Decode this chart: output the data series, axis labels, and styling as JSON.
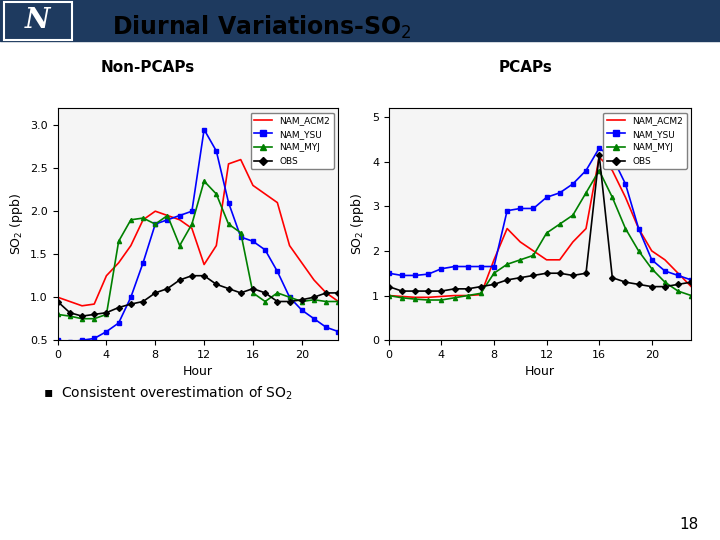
{
  "title": "Diurnal Variations-SO$_2$",
  "subtitle_left": "Non-PCAPs",
  "subtitle_right": "PCAPs",
  "bullet_text": "Consistent overestimation of SO$_2$",
  "page_number": "18",
  "hours": [
    0,
    1,
    2,
    3,
    4,
    5,
    6,
    7,
    8,
    9,
    10,
    11,
    12,
    13,
    14,
    15,
    16,
    17,
    18,
    19,
    20,
    21,
    22,
    23
  ],
  "non_pcaps": {
    "NAM_ACM2": [
      1.0,
      0.95,
      0.9,
      0.92,
      1.25,
      1.4,
      1.6,
      1.9,
      2.0,
      1.95,
      1.9,
      1.8,
      1.38,
      1.6,
      2.55,
      2.6,
      2.3,
      2.2,
      2.1,
      1.6,
      1.4,
      1.2,
      1.05,
      0.95
    ],
    "NAM_YSU": [
      0.5,
      0.48,
      0.5,
      0.52,
      0.6,
      0.7,
      1.0,
      1.4,
      1.85,
      1.9,
      1.95,
      2.0,
      2.95,
      2.7,
      2.1,
      1.7,
      1.65,
      1.55,
      1.3,
      1.0,
      0.85,
      0.75,
      0.65,
      0.6
    ],
    "NAM_MYJ": [
      0.8,
      0.78,
      0.75,
      0.75,
      0.8,
      1.65,
      1.9,
      1.92,
      1.85,
      1.95,
      1.6,
      1.85,
      2.35,
      2.2,
      1.85,
      1.75,
      1.05,
      0.95,
      1.05,
      1.0,
      0.95,
      0.97,
      0.95,
      0.95
    ],
    "OBS": [
      0.95,
      0.82,
      0.78,
      0.8,
      0.82,
      0.88,
      0.92,
      0.95,
      1.05,
      1.1,
      1.2,
      1.25,
      1.25,
      1.15,
      1.1,
      1.05,
      1.1,
      1.05,
      0.95,
      0.95,
      0.97,
      1.0,
      1.05,
      1.05
    ]
  },
  "pcaps": {
    "NAM_ACM2": [
      1.0,
      0.98,
      0.96,
      0.96,
      0.98,
      1.0,
      1.0,
      1.02,
      1.8,
      2.5,
      2.2,
      2.0,
      1.8,
      1.8,
      2.2,
      2.5,
      4.1,
      3.8,
      3.2,
      2.5,
      2.0,
      1.8,
      1.5,
      1.2
    ],
    "NAM_YSU": [
      1.5,
      1.45,
      1.45,
      1.48,
      1.6,
      1.65,
      1.65,
      1.65,
      1.65,
      2.9,
      2.95,
      2.95,
      3.2,
      3.3,
      3.5,
      3.8,
      4.3,
      4.1,
      3.5,
      2.5,
      1.8,
      1.55,
      1.45,
      1.35
    ],
    "NAM_MYJ": [
      1.0,
      0.95,
      0.92,
      0.9,
      0.9,
      0.95,
      1.0,
      1.05,
      1.5,
      1.7,
      1.8,
      1.9,
      2.4,
      2.6,
      2.8,
      3.3,
      3.8,
      3.2,
      2.5,
      2.0,
      1.6,
      1.3,
      1.1,
      1.0
    ],
    "OBS": [
      1.2,
      1.1,
      1.1,
      1.1,
      1.1,
      1.15,
      1.15,
      1.2,
      1.25,
      1.35,
      1.4,
      1.45,
      1.5,
      1.5,
      1.45,
      1.5,
      4.15,
      1.4,
      1.3,
      1.25,
      1.2,
      1.2,
      1.25,
      1.3
    ]
  },
  "colors": {
    "NAM_ACM2": "#ff0000",
    "NAM_YSU": "#0000ff",
    "NAM_MYJ": "#008000",
    "OBS": "#000000"
  },
  "markers": {
    "NAM_ACM2": "none",
    "NAM_YSU": "s",
    "NAM_MYJ": "^",
    "OBS": "D"
  },
  "ylim_left": [
    0.5,
    3.2
  ],
  "ylim_right": [
    0.0,
    5.2
  ],
  "yticks_left": [
    0.5,
    1.0,
    1.5,
    2.0,
    2.5,
    3.0
  ],
  "yticks_right": [
    0.0,
    1.0,
    2.0,
    3.0,
    4.0,
    5.0
  ],
  "xticks": [
    0,
    4,
    8,
    12,
    16,
    20
  ],
  "xlabel": "Hour",
  "ylabel": "SO$_2$ (ppb)",
  "header_color": "#1e3a5f",
  "series_order": [
    "NAM_ACM2",
    "NAM_YSU",
    "NAM_MYJ",
    "OBS"
  ]
}
